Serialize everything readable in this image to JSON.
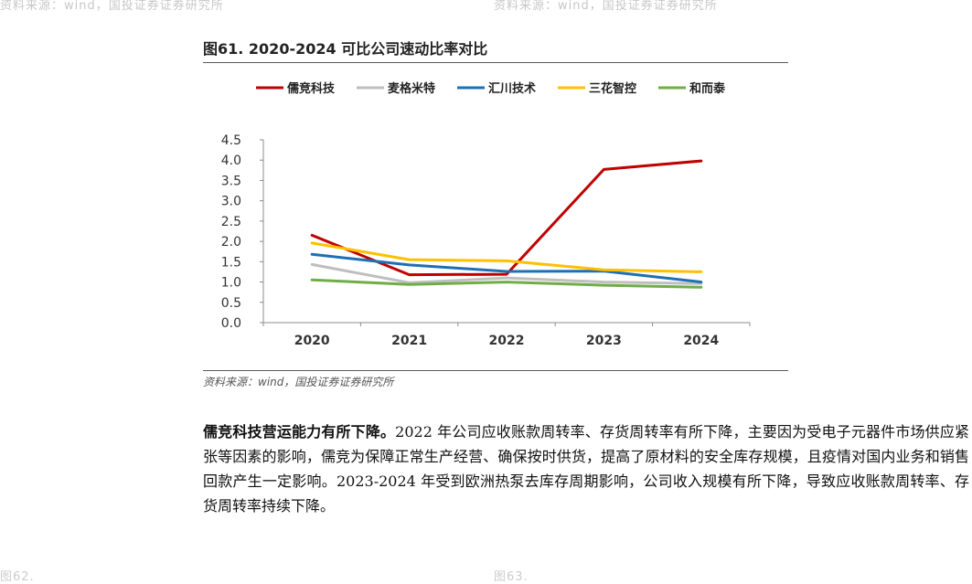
{
  "header": {
    "left_text": "资料来源：wind，国投证券证券研究所",
    "right_text": "资料来源：wind，国投证券证券研究所"
  },
  "chart_data": {
    "type": "line",
    "title": "图61. 2020-2024 可比公司速动比率对比",
    "categories": [
      "2020",
      "2021",
      "2022",
      "2023",
      "2024"
    ],
    "ylim": [
      0,
      4.5
    ],
    "yticks": [
      "0.0",
      "0.5",
      "1.0",
      "1.5",
      "2.0",
      "2.5",
      "3.0",
      "3.5",
      "4.0",
      "4.5"
    ],
    "legend_position": "top",
    "series": [
      {
        "name": "儒竞科技",
        "color": "#C00000",
        "values": [
          2.15,
          1.18,
          1.19,
          3.77,
          3.98
        ]
      },
      {
        "name": "麦格米特",
        "color": "#BFBFBF",
        "values": [
          1.43,
          0.98,
          1.1,
          1.0,
          0.96
        ]
      },
      {
        "name": "汇川技术",
        "color": "#1F6FB4",
        "values": [
          1.68,
          1.42,
          1.26,
          1.27,
          1.0
        ]
      },
      {
        "name": "三花智控",
        "color": "#FFC000",
        "values": [
          1.96,
          1.55,
          1.52,
          1.3,
          1.25
        ]
      },
      {
        "name": "和而泰",
        "color": "#70AD47",
        "values": [
          1.05,
          0.94,
          1.0,
          0.92,
          0.87
        ]
      }
    ],
    "source": "资料来源：wind，国投证券证券研究所"
  },
  "body": {
    "lead": "儒竞科技营运能力有所下降。",
    "text": "2022 年公司应收账款周转率、存货周转率有所下降，主要因为受电子元器件市场供应紧张等因素的影响，儒竞为保障正常生产经营、确保按时供货，提高了原材料的安全库存规模，且疫情对国内业务和销售回款产生一定影响。2023-2024 年受到欧洲热泵去库存周期影响，公司收入规模有所下降，导致应收账款周转率、存货周转率持续下降。"
  },
  "footer": {
    "left_text": "图62.",
    "right_text": "图63."
  }
}
